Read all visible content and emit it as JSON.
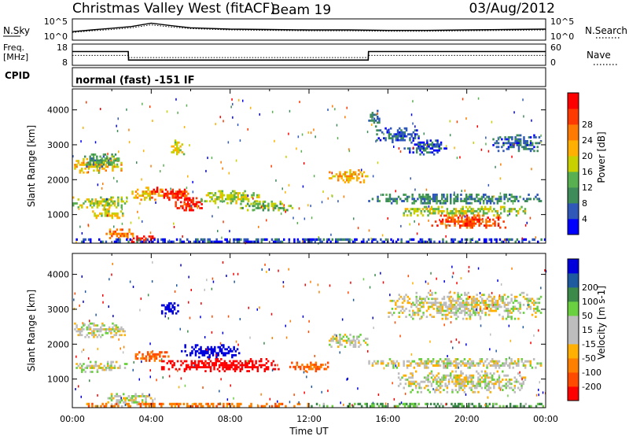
{
  "header": {
    "radar": "Christmas Valley West (fitACF)",
    "beam": "Beam 19",
    "date": "03/Aug/2012"
  },
  "noise_panel": {
    "left_label": "N.Sky",
    "left_ticks": [
      "10^5",
      "10^0"
    ],
    "right_label": "N.Search",
    "right_ticks": [
      "10^5",
      "10^0"
    ]
  },
  "freq_panel": {
    "left_label_1": "Freq.",
    "left_label_2": "[MHz]",
    "left_ticks": [
      "18",
      "8"
    ],
    "right_label": "Nave",
    "right_ticks": [
      "60",
      "0"
    ]
  },
  "cpid_panel": {
    "label": "CPID",
    "text": "normal (fast) -151 IF"
  },
  "colors": {
    "power_scale": [
      "#0000ff",
      "#2f58b8",
      "#3d8c5a",
      "#58b050",
      "#c8d000",
      "#ffb000",
      "#ff7a00",
      "#ff3a00",
      "#ff0000"
    ],
    "velocity_scale": [
      "#0000dd",
      "#1e5aa0",
      "#3c8a4a",
      "#6ad040",
      "#bdbdbd",
      "#bdbdbd",
      "#ffb000",
      "#ff8000",
      "#ff4a00",
      "#ff0000"
    ]
  },
  "chart_data": [
    {
      "type": "line",
      "title": "",
      "series": [
        {
          "name": "N.Sky",
          "x": [
            "00:00",
            "01:00",
            "02:00",
            "03:00",
            "04:00",
            "05:00",
            "06:00",
            "08:00",
            "10:00",
            "12:00",
            "14:00",
            "16:00",
            "18:00",
            "20:00",
            "22:00",
            "24:00"
          ],
          "values": [
            2.0,
            2.4,
            2.8,
            3.2,
            4.0,
            3.4,
            2.9,
            2.6,
            2.5,
            2.4,
            2.4,
            2.3,
            2.3,
            2.4,
            2.5,
            2.6
          ]
        },
        {
          "name": "N.Search",
          "x": [
            "00:00",
            "01:00",
            "02:00",
            "03:00",
            "04:00",
            "05:00",
            "06:00",
            "08:00",
            "10:00",
            "12:00",
            "14:00",
            "16:00",
            "18:00",
            "20:00",
            "22:00",
            "24:00"
          ],
          "values": [
            1.8,
            2.2,
            2.5,
            2.9,
            3.6,
            3.1,
            2.7,
            2.4,
            2.3,
            2.2,
            2.2,
            2.1,
            2.1,
            2.2,
            2.3,
            2.4
          ]
        }
      ],
      "ylim_log10": [
        0,
        5
      ]
    },
    {
      "type": "line",
      "title": "",
      "series": [
        {
          "name": "Freq.",
          "x": [
            "00:00",
            "02:50",
            "02:51",
            "15:00",
            "15:01",
            "24:00"
          ],
          "values": [
            14.5,
            14.5,
            10.5,
            10.5,
            14.5,
            14.5
          ]
        },
        {
          "name": "Nave",
          "x": [
            "00:00",
            "02:50",
            "02:51",
            "15:00",
            "15:01",
            "24:00"
          ],
          "values": [
            28,
            28,
            22,
            22,
            28,
            28
          ]
        }
      ],
      "ylim": [
        8,
        18
      ]
    },
    {
      "type": "heatmap",
      "title": "",
      "xlabel": "",
      "ylabel": "Slant Range [km]",
      "xticks": [
        "00:00",
        "04:00",
        "08:00",
        "12:00",
        "16:00",
        "20:00",
        "00:00"
      ],
      "xlim_hours": [
        0,
        24
      ],
      "yticks": [
        "1000",
        "2000",
        "3000",
        "4000"
      ],
      "ylim": [
        180,
        4600
      ],
      "colorbar_label": "Power [dB]",
      "colorbar_ticks": [
        "4",
        "8",
        "12",
        "16",
        "20",
        "24",
        "28"
      ],
      "zlim": [
        0,
        30
      ],
      "blobs": [
        {
          "t0": 0.0,
          "t1": 2.7,
          "r0": 2180,
          "r1": 2620,
          "p": 18
        },
        {
          "t0": 0.6,
          "t1": 2.4,
          "r0": 2350,
          "r1": 2750,
          "p": 10
        },
        {
          "t0": 0.0,
          "t1": 2.8,
          "r0": 1180,
          "r1": 1520,
          "p": 14
        },
        {
          "t0": 1.0,
          "t1": 2.6,
          "r0": 880,
          "r1": 1180,
          "p": 16
        },
        {
          "t0": 1.6,
          "t1": 3.2,
          "r0": 300,
          "r1": 600,
          "p": 22
        },
        {
          "t0": 2.8,
          "t1": 4.2,
          "r0": 190,
          "r1": 400,
          "p": 28
        },
        {
          "t0": 3.0,
          "t1": 4.6,
          "r0": 1400,
          "r1": 1800,
          "p": 18
        },
        {
          "t0": 4.0,
          "t1": 6.0,
          "r0": 1400,
          "r1": 1800,
          "p": 26
        },
        {
          "t0": 5.2,
          "t1": 6.6,
          "r0": 1100,
          "r1": 1500,
          "p": 27
        },
        {
          "t0": 5.0,
          "t1": 5.7,
          "r0": 2650,
          "r1": 3150,
          "p": 16
        },
        {
          "t0": 6.5,
          "t1": 9.5,
          "r0": 1300,
          "r1": 1700,
          "p": 14
        },
        {
          "t0": 8.5,
          "t1": 11.2,
          "r0": 1100,
          "r1": 1400,
          "p": 12
        },
        {
          "t0": 13.0,
          "t1": 15.0,
          "r0": 1900,
          "r1": 2300,
          "p": 18
        },
        {
          "t0": 15.0,
          "t1": 15.6,
          "r0": 3500,
          "r1": 4000,
          "p": 6
        },
        {
          "t0": 15.4,
          "t1": 17.6,
          "r0": 3050,
          "r1": 3500,
          "p": 5
        },
        {
          "t0": 16.8,
          "t1": 19.0,
          "r0": 2700,
          "r1": 3150,
          "p": 5
        },
        {
          "t0": 21.3,
          "t1": 23.8,
          "r0": 2800,
          "r1": 3300,
          "p": 6
        },
        {
          "t0": 15.0,
          "t1": 23.8,
          "r0": 1300,
          "r1": 1600,
          "p": 8
        },
        {
          "t0": 16.5,
          "t1": 23.0,
          "r0": 950,
          "r1": 1250,
          "p": 14
        },
        {
          "t0": 18.2,
          "t1": 22.0,
          "r0": 600,
          "r1": 1000,
          "p": 24
        },
        {
          "t0": 0.0,
          "t1": 24.0,
          "r0": 190,
          "r1": 320,
          "p": 4
        }
      ]
    },
    {
      "type": "heatmap",
      "title": "",
      "xlabel": "Time UT",
      "ylabel": "Slant Range [km]",
      "xticks": [
        "00:00",
        "04:00",
        "08:00",
        "12:00",
        "16:00",
        "20:00",
        "00:00"
      ],
      "xlim_hours": [
        0,
        24
      ],
      "yticks": [
        "1000",
        "2000",
        "3000",
        "4000"
      ],
      "ylim": [
        180,
        4600
      ],
      "colorbar_label": "Velocity [m s-1]",
      "colorbar_ticks": [
        "200",
        "100",
        "50",
        "15",
        "-15",
        "-50",
        "-100",
        "-200"
      ],
      "zlim": [
        -250,
        250
      ],
      "blobs": [
        {
          "t0": 0.0,
          "t1": 2.7,
          "r0": 2180,
          "r1": 2620,
          "v": 0
        },
        {
          "t0": 0.0,
          "t1": 2.8,
          "r0": 1180,
          "r1": 1520,
          "v": 0
        },
        {
          "t0": 1.6,
          "t1": 4.2,
          "r0": 190,
          "r1": 600,
          "v": 0
        },
        {
          "t0": 3.0,
          "t1": 5.0,
          "r0": 1500,
          "r1": 1800,
          "v": -70
        },
        {
          "t0": 4.5,
          "t1": 10.5,
          "r0": 1200,
          "r1": 1600,
          "v": -200
        },
        {
          "t0": 5.5,
          "t1": 8.5,
          "r0": 1600,
          "r1": 2000,
          "v": 180
        },
        {
          "t0": 4.5,
          "t1": 5.4,
          "r0": 2800,
          "r1": 3200,
          "v": 220
        },
        {
          "t0": 11.0,
          "t1": 13.0,
          "r0": 1200,
          "r1": 1500,
          "v": -80
        },
        {
          "t0": 13.0,
          "t1": 15.0,
          "r0": 1900,
          "r1": 2300,
          "v": 0
        },
        {
          "t0": 15.0,
          "t1": 23.8,
          "r0": 1300,
          "r1": 1600,
          "v": 0
        },
        {
          "t0": 16.5,
          "t1": 23.0,
          "r0": 600,
          "r1": 1250,
          "v": 0
        },
        {
          "t0": 16.0,
          "t1": 23.8,
          "r0": 2700,
          "r1": 3500,
          "v": 0
        },
        {
          "t0": 0.0,
          "t1": 12.0,
          "r0": 190,
          "r1": 320,
          "v": -60
        },
        {
          "t0": 12.0,
          "t1": 24.0,
          "r0": 190,
          "r1": 320,
          "v": 40
        }
      ]
    }
  ]
}
